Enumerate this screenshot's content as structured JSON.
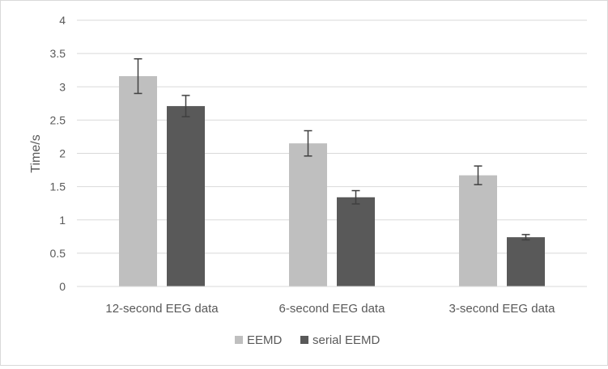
{
  "chart_data": {
    "type": "bar",
    "title": "",
    "xlabel": "",
    "ylabel": "Time/s",
    "ylim": [
      0,
      4
    ],
    "yticks": [
      "0",
      "0.5",
      "1",
      "1.5",
      "2",
      "2.5",
      "3",
      "3.5",
      "4"
    ],
    "grid": true,
    "legend_position": "bottom",
    "categories": [
      "12-second EEG data",
      "6-second EEG data",
      "3-second EEG data"
    ],
    "series": [
      {
        "name": "EEMD",
        "color": "#bfbfbf",
        "values": [
          3.16,
          2.15,
          1.67
        ],
        "error": [
          0.26,
          0.19,
          0.14
        ]
      },
      {
        "name": "serial EEMD",
        "color": "#595959",
        "values": [
          2.71,
          1.34,
          0.74
        ],
        "error": [
          0.16,
          0.1,
          0.04
        ]
      }
    ]
  }
}
